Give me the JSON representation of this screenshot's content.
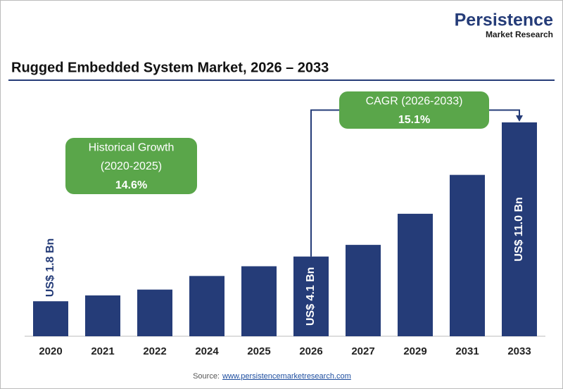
{
  "logo": {
    "name": "Persistence",
    "tagline": "Market Research"
  },
  "chart_data": {
    "type": "bar",
    "title": "Rugged Embedded System Market, 2026 – 2033",
    "categories": [
      "2020",
      "2021",
      "2022",
      "2024",
      "2025",
      "2026",
      "2027",
      "2029",
      "2031",
      "2033"
    ],
    "values": [
      1.8,
      2.1,
      2.4,
      3.1,
      3.6,
      4.1,
      4.7,
      6.3,
      8.3,
      11.0
    ],
    "value_labels": [
      "US$ 1.8 Bn",
      null,
      null,
      null,
      null,
      "US$ 4.1 Bn",
      null,
      null,
      null,
      "US$ 11.0 Bn"
    ],
    "color": "#253c78",
    "annotations": [
      {
        "lines": [
          "Historical Growth",
          "(2020-2025)",
          "14.6%"
        ]
      },
      {
        "lines": [
          "CAGR (2026-2033)",
          "15.1%"
        ]
      }
    ],
    "source_label": "Source:",
    "source_url": "www.persistencemarketresearch.com"
  }
}
